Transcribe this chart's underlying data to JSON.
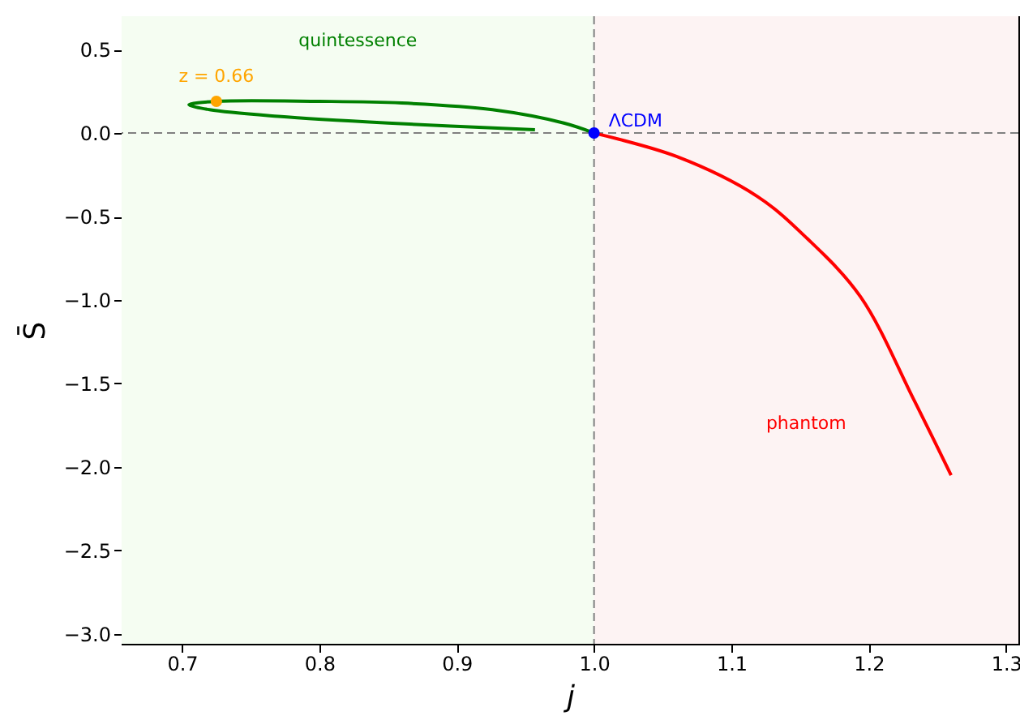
{
  "chart_data": {
    "type": "line",
    "xlabel": "j",
    "ylabel": "S̄",
    "xlim": [
      0.656,
      1.309
    ],
    "ylim": [
      -3.06,
      0.7
    ],
    "xticks": [
      {
        "value": 0.7,
        "label": "0.7"
      },
      {
        "value": 0.8,
        "label": "0.8"
      },
      {
        "value": 0.9,
        "label": "0.9"
      },
      {
        "value": 1.0,
        "label": "1.0"
      },
      {
        "value": 1.1,
        "label": "1.1"
      },
      {
        "value": 1.2,
        "label": "1.2"
      },
      {
        "value": 1.3,
        "label": "1.3"
      }
    ],
    "yticks": [
      {
        "value": -3.0,
        "label": "−3.0"
      },
      {
        "value": -2.5,
        "label": "−2.5"
      },
      {
        "value": -2.0,
        "label": "−2.0"
      },
      {
        "value": -1.5,
        "label": "−1.5"
      },
      {
        "value": -1.0,
        "label": "−1.0"
      },
      {
        "value": -0.5,
        "label": "−0.5"
      },
      {
        "value": 0.0,
        "label": "0.0"
      },
      {
        "value": 0.5,
        "label": "0.5"
      }
    ],
    "grid": false,
    "series": [
      {
        "color": "#008000",
        "x": [
          0.957,
          0.85,
          0.77,
          0.72,
          0.705,
          0.725,
          0.8,
          0.86,
          0.926,
          0.978,
          1.0
        ],
        "values": [
          0.02,
          0.06,
          0.1,
          0.14,
          0.17,
          0.19,
          0.19,
          0.18,
          0.14,
          0.06,
          0.0
        ]
      },
      {
        "color": "#ff0000",
        "x": [
          1.0,
          1.06,
          1.119,
          1.155,
          1.194,
          1.233,
          1.26
        ],
        "values": [
          0.0,
          -0.14,
          -0.38,
          -0.63,
          -0.98,
          -1.6,
          -2.05
        ]
      },
      {
        "type": "scatter",
        "name": "z = 0.66",
        "color": "#ffa500",
        "x": [
          0.725
        ],
        "values": [
          0.19
        ]
      },
      {
        "type": "scatter",
        "name": "ΛCDM",
        "color": "#0000ff",
        "x": [
          1.0
        ],
        "values": [
          0.0
        ]
      }
    ],
    "ref_lines": [
      {
        "axis": "x",
        "value": 1.0,
        "color": "#808080",
        "line_style": "dashed"
      },
      {
        "axis": "y",
        "value": 0.0,
        "color": "#808080",
        "line_style": "dashed"
      }
    ],
    "bands": [
      {
        "axis": "x",
        "from": 0.656,
        "to": 1.0,
        "color": "#f5fdf2",
        "label": "quintessence"
      },
      {
        "axis": "x",
        "from": 1.0,
        "to": 1.309,
        "color": "#fdf3f3",
        "label": "phantom"
      }
    ]
  }
}
